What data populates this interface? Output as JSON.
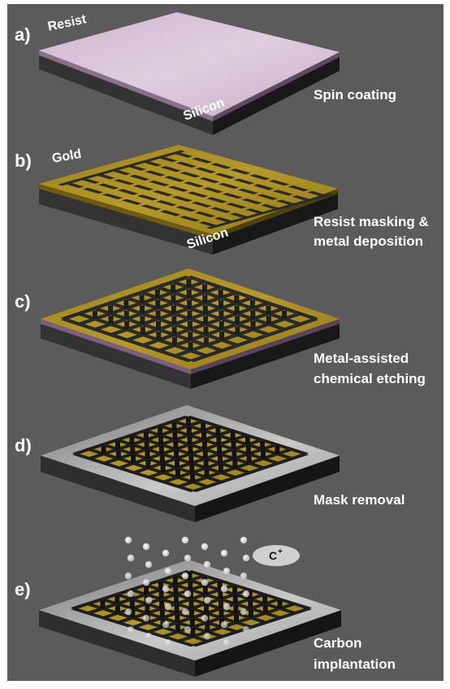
{
  "steps": [
    {
      "letter": "a)",
      "caption_lines": [
        "Spin coating"
      ],
      "material_labels": [
        "Resist",
        "Silicon"
      ]
    },
    {
      "letter": "b)",
      "caption_lines": [
        "Resist masking &",
        "metal deposition"
      ],
      "material_labels": [
        "Gold",
        "Silicon"
      ]
    },
    {
      "letter": "c)",
      "caption_lines": [
        "Metal-assisted",
        "chemical etching"
      ],
      "material_labels": []
    },
    {
      "letter": "d)",
      "caption_lines": [
        "Mask removal"
      ],
      "material_labels": []
    },
    {
      "letter": "e)",
      "caption_lines": [
        "Carbon",
        "implantation"
      ],
      "material_labels": []
    }
  ],
  "ion": {
    "symbol": "C",
    "charge": "+"
  },
  "colors": {
    "background": "#5b5b5b",
    "resist": "#d4b9d4",
    "gold": "#a68c1e",
    "silicon": "#262626",
    "mask_frame": "#b8b8b8",
    "ion": "#f2f2f2"
  }
}
